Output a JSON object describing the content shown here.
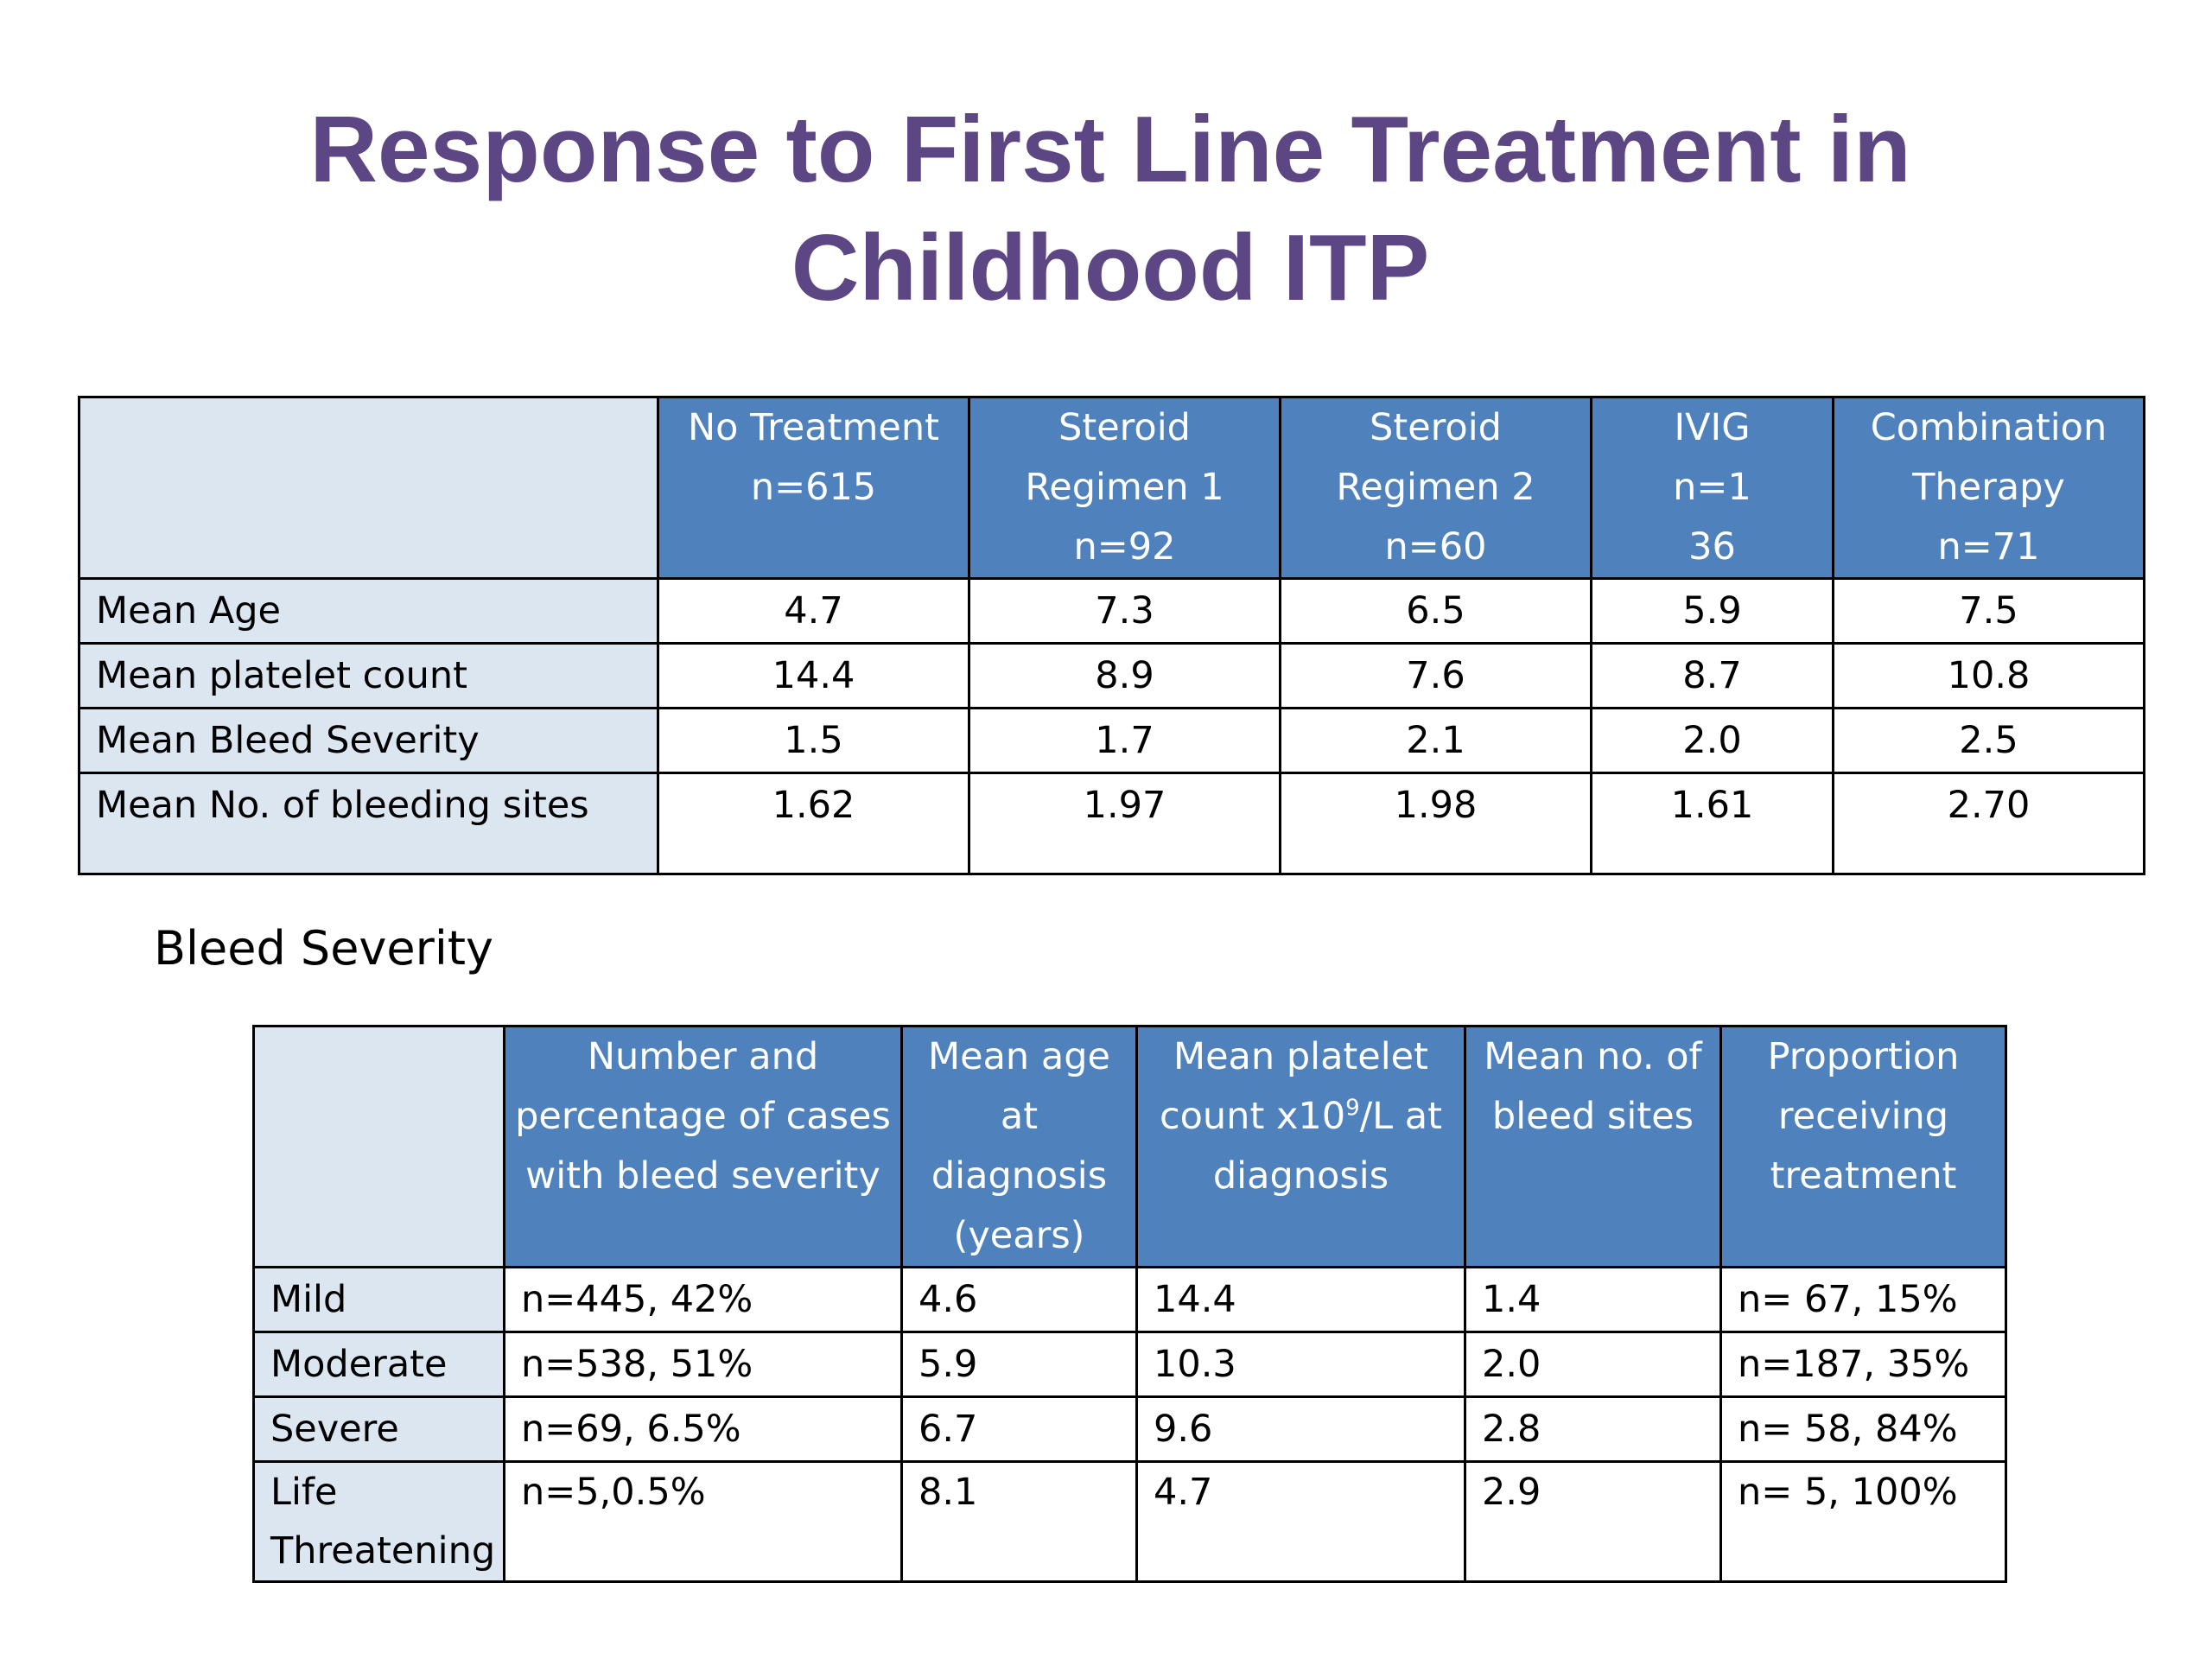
{
  "title": {
    "line1": "Response to First Line Treatment in",
    "line2": "Childhood ITP"
  },
  "table1": {
    "headers": [
      [
        "No Treatment",
        "n=615"
      ],
      [
        "Steroid",
        "Regimen 1",
        "n=92"
      ],
      [
        "Steroid",
        "Regimen 2",
        "n=60"
      ],
      [
        "IVIG",
        "n=1",
        "36"
      ],
      [
        "Combination",
        "Therapy",
        "n=71"
      ]
    ],
    "rows": [
      {
        "label": "Mean Age",
        "values": [
          "4.7",
          "7.3",
          "6.5",
          "5.9",
          "7.5"
        ]
      },
      {
        "label": "Mean platelet count",
        "values": [
          "14.4",
          "8.9",
          "7.6",
          "8.7",
          "10.8"
        ]
      },
      {
        "label": "Mean Bleed Severity",
        "values": [
          "1.5",
          "1.7",
          "2.1",
          "2.0",
          "2.5"
        ]
      },
      {
        "label": "Mean No. of bleeding sites",
        "values": [
          "1.62",
          "1.97",
          "1.98",
          "1.61",
          "2.70"
        ]
      }
    ]
  },
  "section_label": "Bleed Severity",
  "table2": {
    "headers": [
      [
        "Number and",
        "percentage of cases",
        "with bleed severity"
      ],
      [
        "Mean age",
        "at",
        "diagnosis",
        "(years)"
      ],
      [
        "Mean platelet",
        "count x10",
        "9",
        "/L at",
        "diagnosis"
      ],
      [
        "Mean no. of",
        "bleed sites"
      ],
      [
        "Proportion",
        "receiving",
        "treatment"
      ]
    ],
    "rows": [
      {
        "label": "Mild",
        "values": [
          "n=445, 42%",
          "4.6",
          "14.4",
          "1.4",
          "n= 67, 15%"
        ]
      },
      {
        "label": "Moderate",
        "values": [
          "n=538, 51%",
          "5.9",
          "10.3",
          "2.0",
          "n=187, 35%"
        ]
      },
      {
        "label": "Severe",
        "values": [
          "n=69, 6.5%",
          "6.7",
          "9.6",
          "2.8",
          "n= 58, 84%"
        ]
      },
      {
        "label": "Life Threatening",
        "values": [
          "n=5,0.5%",
          "8.1",
          "4.7",
          "2.9",
          "n= 5, 100%"
        ]
      }
    ]
  }
}
